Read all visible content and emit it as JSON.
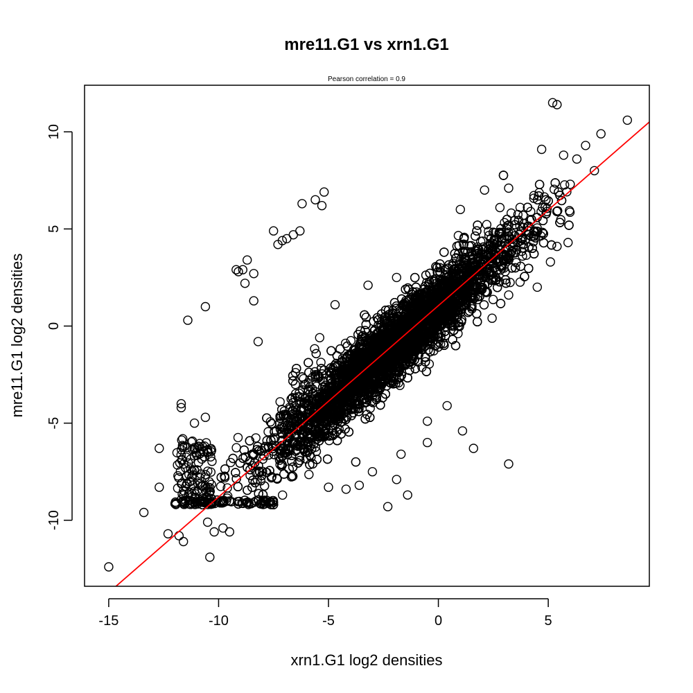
{
  "chart_data": {
    "type": "scatter",
    "title": "mre11.G1 vs xrn1.G1",
    "subtitle": "Pearson correlation =  0.9",
    "xlabel": "xrn1.G1 log2 densities",
    "ylabel": "mre11.G1 log2 densities",
    "xlim": [
      -16.1,
      9.6
    ],
    "ylim": [
      -13.4,
      12.4
    ],
    "x_ticks": [
      -15,
      -10,
      -5,
      0,
      5
    ],
    "y_ticks": [
      -10,
      -5,
      0,
      5,
      10
    ],
    "grid": false,
    "legend": "none",
    "marker": "open-circle",
    "marker_color": "#000000",
    "trend_line": {
      "type": "linear",
      "color": "#ff0000",
      "intercept": 1.05,
      "slope": 0.985
    },
    "cloud": {
      "description_free": true,
      "band_x_range": [
        -12.0,
        6.0
      ],
      "band_center_intercept": 1.0,
      "band_center_slope": 0.98,
      "floor_value": -9.2,
      "approx_point_count": 7000
    },
    "outliers": [
      {
        "x": -15.0,
        "y": -12.4
      },
      {
        "x": -13.4,
        "y": -9.6
      },
      {
        "x": -12.7,
        "y": -6.3
      },
      {
        "x": -12.7,
        "y": -8.3
      },
      {
        "x": -12.3,
        "y": -10.7
      },
      {
        "x": -11.8,
        "y": -10.8
      },
      {
        "x": -11.6,
        "y": -11.1
      },
      {
        "x": -11.4,
        "y": 0.3
      },
      {
        "x": -10.6,
        "y": 1.0
      },
      {
        "x": -10.4,
        "y": -11.9
      },
      {
        "x": -10.5,
        "y": -10.1
      },
      {
        "x": -10.2,
        "y": -10.6
      },
      {
        "x": -9.8,
        "y": -10.4
      },
      {
        "x": -9.5,
        "y": -10.6
      },
      {
        "x": -11.7,
        "y": -4.0
      },
      {
        "x": -11.7,
        "y": -4.2
      },
      {
        "x": -11.1,
        "y": -5.0
      },
      {
        "x": -10.6,
        "y": -4.7
      },
      {
        "x": -9.2,
        "y": 2.9
      },
      {
        "x": -9.1,
        "y": 2.8
      },
      {
        "x": -8.9,
        "y": 2.9
      },
      {
        "x": -8.7,
        "y": 3.4
      },
      {
        "x": -8.8,
        "y": 2.2
      },
      {
        "x": -8.4,
        "y": 2.7
      },
      {
        "x": -8.4,
        "y": 1.3
      },
      {
        "x": -8.2,
        "y": -0.8
      },
      {
        "x": -7.5,
        "y": 4.9
      },
      {
        "x": -7.3,
        "y": 4.2
      },
      {
        "x": -7.1,
        "y": 4.4
      },
      {
        "x": -6.9,
        "y": 4.5
      },
      {
        "x": -6.6,
        "y": 4.7
      },
      {
        "x": -6.3,
        "y": 4.9
      },
      {
        "x": -6.2,
        "y": 6.3
      },
      {
        "x": -5.6,
        "y": 6.5
      },
      {
        "x": -5.3,
        "y": 6.2
      },
      {
        "x": -5.2,
        "y": 6.9
      },
      {
        "x": -7.2,
        "y": -3.9
      },
      {
        "x": -6.5,
        "y": -2.4
      },
      {
        "x": -5.4,
        "y": -0.6
      },
      {
        "x": -4.7,
        "y": 1.1
      },
      {
        "x": -3.2,
        "y": 2.1
      },
      {
        "x": -1.9,
        "y": 2.5
      },
      {
        "x": 1.0,
        "y": 6.0
      },
      {
        "x": 2.1,
        "y": 7.0
      },
      {
        "x": 2.8,
        "y": 6.1
      },
      {
        "x": 3.2,
        "y": 7.1
      },
      {
        "x": 4.2,
        "y": 5.9
      },
      {
        "x": 4.7,
        "y": 9.1
      },
      {
        "x": 5.2,
        "y": 11.5
      },
      {
        "x": 5.4,
        "y": 11.4
      },
      {
        "x": 5.7,
        "y": 8.8
      },
      {
        "x": 6.3,
        "y": 8.6
      },
      {
        "x": 6.7,
        "y": 9.3
      },
      {
        "x": 7.4,
        "y": 9.9
      },
      {
        "x": 8.6,
        "y": 10.6
      },
      {
        "x": 7.1,
        "y": 8.0
      },
      {
        "x": 6.0,
        "y": 7.3
      },
      {
        "x": 5.9,
        "y": 4.3
      },
      {
        "x": 5.4,
        "y": 4.1
      },
      {
        "x": 5.1,
        "y": 3.3
      },
      {
        "x": 4.5,
        "y": 2.0
      },
      {
        "x": 3.2,
        "y": 1.6
      },
      {
        "x": 3.2,
        "y": -7.1
      },
      {
        "x": 1.6,
        "y": -6.3
      },
      {
        "x": 1.1,
        "y": -5.4
      },
      {
        "x": 0.4,
        "y": -4.1
      },
      {
        "x": -0.5,
        "y": -6.0
      },
      {
        "x": -0.5,
        "y": -4.9
      },
      {
        "x": -1.7,
        "y": -6.6
      },
      {
        "x": -1.4,
        "y": -8.7
      },
      {
        "x": -1.9,
        "y": -7.9
      },
      {
        "x": -2.3,
        "y": -9.3
      },
      {
        "x": -3.0,
        "y": -7.5
      },
      {
        "x": -3.6,
        "y": -8.2
      },
      {
        "x": -4.2,
        "y": -8.4
      },
      {
        "x": -5.0,
        "y": -8.3
      }
    ]
  }
}
